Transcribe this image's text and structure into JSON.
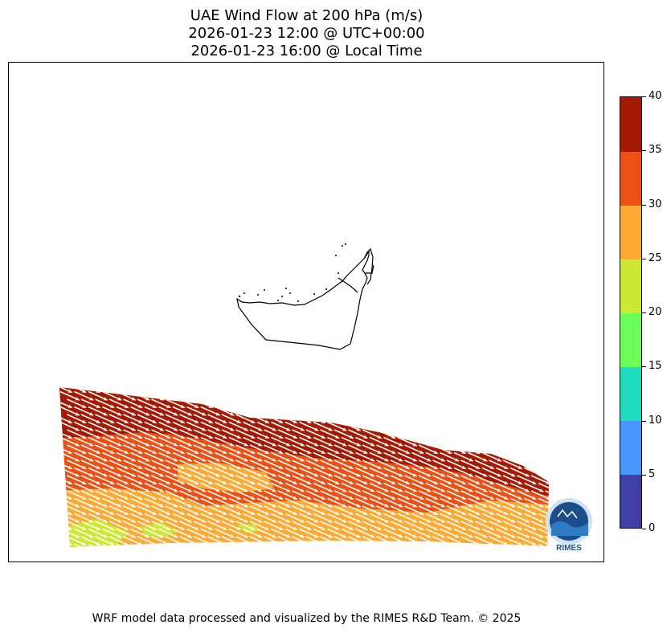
{
  "title_lines": [
    "UAE Wind Flow at 200 hPa (m/s)",
    "2026-01-23 12:00 @ UTC+00:00",
    "2026-01-23 16:00 @ Local Time"
  ],
  "colorbar": {
    "ticks": [
      "0",
      "5",
      "10",
      "15",
      "20",
      "25",
      "30",
      "35",
      "40"
    ],
    "levels": [
      {
        "min": 0,
        "max": 5,
        "color": "#3f3fa6"
      },
      {
        "min": 5,
        "max": 10,
        "color": "#4896ff"
      },
      {
        "min": 10,
        "max": 15,
        "color": "#1fdcbf"
      },
      {
        "min": 15,
        "max": 20,
        "color": "#6cff5a"
      },
      {
        "min": 20,
        "max": 25,
        "color": "#cde832"
      },
      {
        "min": 25,
        "max": 30,
        "color": "#fdaa35"
      },
      {
        "min": 30,
        "max": 35,
        "color": "#eb5014"
      },
      {
        "min": 35,
        "max": 40,
        "color": "#a51a05"
      }
    ]
  },
  "wind_field": {
    "arrow_color": "#ffffff",
    "direction": "from WNW toward ESE"
  },
  "logo": {
    "text": "RIMES"
  },
  "footer": "WRF model data processed and visualized by the RIMES R&D Team. © 2025"
}
